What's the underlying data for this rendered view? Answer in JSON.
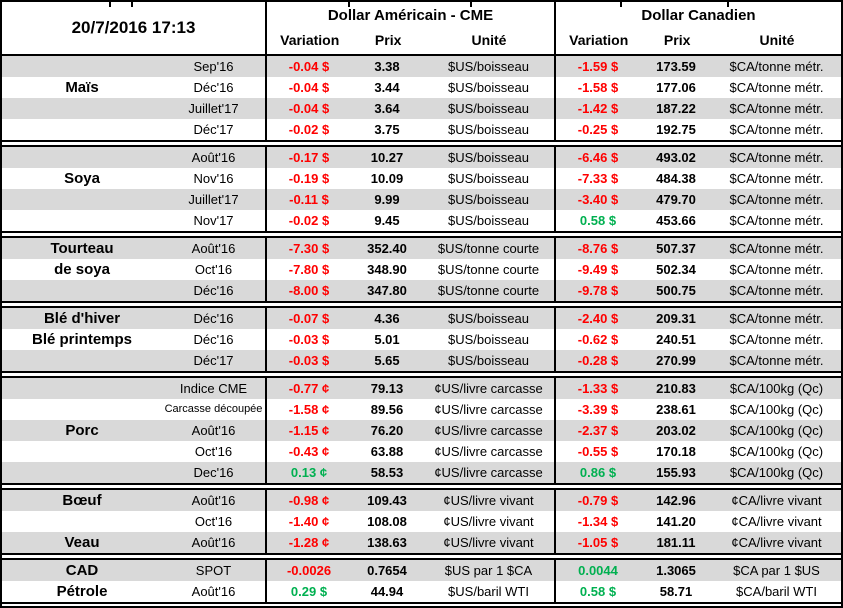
{
  "meta": {
    "timestamp": "20/7/2016 17:13"
  },
  "header": {
    "us_title": "Dollar Américain - CME",
    "ca_title": "Dollar Canadien",
    "col_variation": "Variation",
    "col_prix": "Prix",
    "col_unite": "Unité"
  },
  "colors": {
    "negative": "#FF0000",
    "positive": "#00B050",
    "row_shade": "#D9D9D9",
    "border": "#000000"
  },
  "groups": [
    {
      "name": "Maïs",
      "rows": [
        {
          "label": "",
          "month": "Sep'16",
          "us_var": "-0.04 $",
          "us_prix": "3.38",
          "us_unit": "$US/boisseau",
          "ca_var": "-1.59 $",
          "ca_prix": "173.59",
          "ca_unit": "$CA/tonne métr."
        },
        {
          "label": "Maïs",
          "month": "Déc'16",
          "us_var": "-0.04 $",
          "us_prix": "3.44",
          "us_unit": "$US/boisseau",
          "ca_var": "-1.58 $",
          "ca_prix": "177.06",
          "ca_unit": "$CA/tonne métr."
        },
        {
          "label": "",
          "month": "Juillet'17",
          "us_var": "-0.04 $",
          "us_prix": "3.64",
          "us_unit": "$US/boisseau",
          "ca_var": "-1.42 $",
          "ca_prix": "187.22",
          "ca_unit": "$CA/tonne métr."
        },
        {
          "label": "",
          "month": "Déc'17",
          "us_var": "-0.02 $",
          "us_prix": "3.75",
          "us_unit": "$US/boisseau",
          "ca_var": "-0.25 $",
          "ca_prix": "192.75",
          "ca_unit": "$CA/tonne métr."
        }
      ]
    },
    {
      "name": "Soya",
      "rows": [
        {
          "label": "",
          "month": "Août'16",
          "us_var": "-0.17 $",
          "us_prix": "10.27",
          "us_unit": "$US/boisseau",
          "ca_var": "-6.46 $",
          "ca_prix": "493.02",
          "ca_unit": "$CA/tonne métr."
        },
        {
          "label": "Soya",
          "month": "Nov'16",
          "us_var": "-0.19 $",
          "us_prix": "10.09",
          "us_unit": "$US/boisseau",
          "ca_var": "-7.33 $",
          "ca_prix": "484.38",
          "ca_unit": "$CA/tonne métr."
        },
        {
          "label": "",
          "month": "Juillet'17",
          "us_var": "-0.11 $",
          "us_prix": "9.99",
          "us_unit": "$US/boisseau",
          "ca_var": "-3.40 $",
          "ca_prix": "479.70",
          "ca_unit": "$CA/tonne métr."
        },
        {
          "label": "",
          "month": "Nov'17",
          "us_var": "-0.02 $",
          "us_prix": "9.45",
          "us_unit": "$US/boisseau",
          "ca_var": "0.58 $",
          "ca_prix": "453.66",
          "ca_unit": "$CA/tonne métr."
        }
      ]
    },
    {
      "name": "Tourteau de soya",
      "rows": [
        {
          "label": "Tourteau",
          "month": "Août'16",
          "us_var": "-7.30 $",
          "us_prix": "352.40",
          "us_unit": "$US/tonne courte",
          "ca_var": "-8.76 $",
          "ca_prix": "507.37",
          "ca_unit": "$CA/tonne métr."
        },
        {
          "label": "de soya",
          "month": "Oct'16",
          "us_var": "-7.80 $",
          "us_prix": "348.90",
          "us_unit": "$US/tonne courte",
          "ca_var": "-9.49 $",
          "ca_prix": "502.34",
          "ca_unit": "$CA/tonne métr."
        },
        {
          "label": "",
          "month": "Déc'16",
          "us_var": "-8.00 $",
          "us_prix": "347.80",
          "us_unit": "$US/tonne courte",
          "ca_var": "-9.78 $",
          "ca_prix": "500.75",
          "ca_unit": "$CA/tonne métr."
        }
      ]
    },
    {
      "name": "Blé",
      "rows": [
        {
          "label": "Blé d'hiver",
          "month": "Déc'16",
          "us_var": "-0.07 $",
          "us_prix": "4.36",
          "us_unit": "$US/boisseau",
          "ca_var": "-2.40 $",
          "ca_prix": "209.31",
          "ca_unit": "$CA/tonne métr."
        },
        {
          "label": "Blé printemps",
          "month": "Déc'16",
          "us_var": "-0.03 $",
          "us_prix": "5.01",
          "us_unit": "$US/boisseau",
          "ca_var": "-0.62 $",
          "ca_prix": "240.51",
          "ca_unit": "$CA/tonne métr."
        },
        {
          "label": "",
          "month": "Déc'17",
          "us_var": "-0.03 $",
          "us_prix": "5.65",
          "us_unit": "$US/boisseau",
          "ca_var": "-0.28 $",
          "ca_prix": "270.99",
          "ca_unit": "$CA/tonne métr."
        }
      ]
    },
    {
      "name": "Porc",
      "rows": [
        {
          "label": "",
          "month": "Indice CME",
          "us_var": "-0.77 ¢",
          "us_prix": "79.13",
          "us_unit": "¢US/livre carcasse",
          "ca_var": "-1.33 $",
          "ca_prix": "210.83",
          "ca_unit": "$CA/100kg (Qc)"
        },
        {
          "label": "",
          "month": "Carcasse découpée",
          "small": true,
          "us_var": "-1.58 ¢",
          "us_prix": "89.56",
          "us_unit": "¢US/livre carcasse",
          "ca_var": "-3.39 $",
          "ca_prix": "238.61",
          "ca_unit": "$CA/100kg (Qc)"
        },
        {
          "label": "Porc",
          "month": "Août'16",
          "us_var": "-1.15 ¢",
          "us_prix": "76.20",
          "us_unit": "¢US/livre carcasse",
          "ca_var": "-2.37 $",
          "ca_prix": "203.02",
          "ca_unit": "$CA/100kg (Qc)"
        },
        {
          "label": "",
          "month": "Oct'16",
          "us_var": "-0.43 ¢",
          "us_prix": "63.88",
          "us_unit": "¢US/livre carcasse",
          "ca_var": "-0.55 $",
          "ca_prix": "170.18",
          "ca_unit": "$CA/100kg (Qc)"
        },
        {
          "label": "",
          "month": "Dec'16",
          "us_var": "0.13 ¢",
          "us_prix": "58.53",
          "us_unit": "¢US/livre carcasse",
          "ca_var": "0.86 $",
          "ca_prix": "155.93",
          "ca_unit": "$CA/100kg (Qc)"
        }
      ]
    },
    {
      "name": "Bœuf / Veau",
      "rows": [
        {
          "label": "Bœuf",
          "month": "Août'16",
          "us_var": "-0.98 ¢",
          "us_prix": "109.43",
          "us_unit": "¢US/livre vivant",
          "ca_var": "-0.79 $",
          "ca_prix": "142.96",
          "ca_unit": "¢CA/livre vivant"
        },
        {
          "label": "",
          "month": "Oct'16",
          "us_var": "-1.40 ¢",
          "us_prix": "108.08",
          "us_unit": "¢US/livre vivant",
          "ca_var": "-1.34 $",
          "ca_prix": "141.20",
          "ca_unit": "¢CA/livre vivant"
        },
        {
          "label": "Veau",
          "month": "Août'16",
          "us_var": "-1.28 ¢",
          "us_prix": "138.63",
          "us_unit": "¢US/livre vivant",
          "ca_var": "-1.05 $",
          "ca_prix": "181.11",
          "ca_unit": "¢CA/livre vivant"
        }
      ]
    },
    {
      "name": "CAD / Pétrole",
      "rows": [
        {
          "label": "CAD",
          "month": "SPOT",
          "us_var": "-0.0026",
          "us_prix": "0.7654",
          "us_unit": "$US par 1 $CA",
          "ca_var": "0.0044",
          "ca_prix": "1.3065",
          "ca_unit": "$CA par 1 $US"
        },
        {
          "label": "Pétrole",
          "month": "Août'16",
          "us_var": "0.29 $",
          "us_prix": "44.94",
          "us_unit": "$US/baril WTI",
          "ca_var": "0.58 $",
          "ca_prix": "58.71",
          "ca_unit": "$CA/baril WTI"
        }
      ]
    }
  ]
}
